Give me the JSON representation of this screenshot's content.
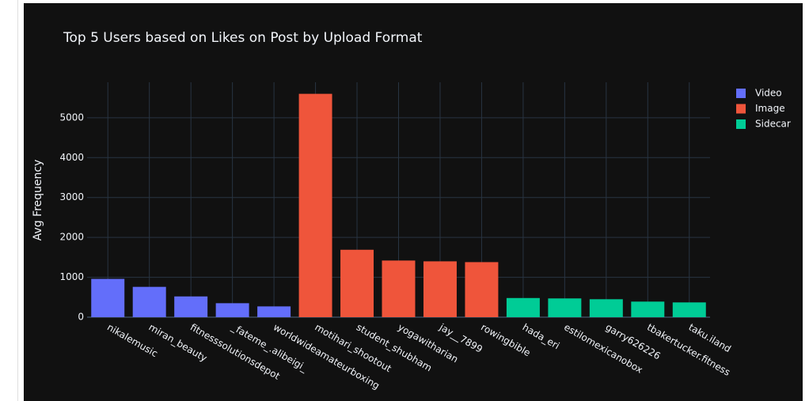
{
  "chart_data": {
    "type": "bar",
    "title": "Top 5 Users based on Likes on Post by Upload Format",
    "ylabel": "Avg Frequency",
    "categories": [
      "nikalemusic",
      "miran_beauty",
      "fitnesssolutionsdepot",
      "_fateme_.alibeigi_",
      "worldwideamateurboxing",
      "motihari_shootout",
      "student_shubham",
      "yogawitharian",
      "jay__7899",
      "rowingbible",
      "hada_eri",
      "estilomexicanobox",
      "garry626226",
      "tbakertucker.fitness",
      "taku.iland"
    ],
    "series": [
      {
        "name": "Video",
        "color": "#636efa",
        "values": [
          960,
          760,
          520,
          350,
          270,
          null,
          null,
          null,
          null,
          null,
          null,
          null,
          null,
          null,
          null
        ]
      },
      {
        "name": "Image",
        "color": "#ef553b",
        "values": [
          null,
          null,
          null,
          null,
          null,
          5600,
          1690,
          1420,
          1400,
          1380,
          null,
          null,
          null,
          null,
          null
        ]
      },
      {
        "name": "Sidecar",
        "color": "#00cc96",
        "values": [
          null,
          null,
          null,
          null,
          null,
          null,
          null,
          null,
          null,
          null,
          480,
          470,
          450,
          390,
          370
        ]
      }
    ],
    "ylim": [
      0,
      5890
    ],
    "yticks": [
      0,
      1000,
      2000,
      3000,
      4000,
      5000
    ],
    "grid": true,
    "legend": "right"
  }
}
